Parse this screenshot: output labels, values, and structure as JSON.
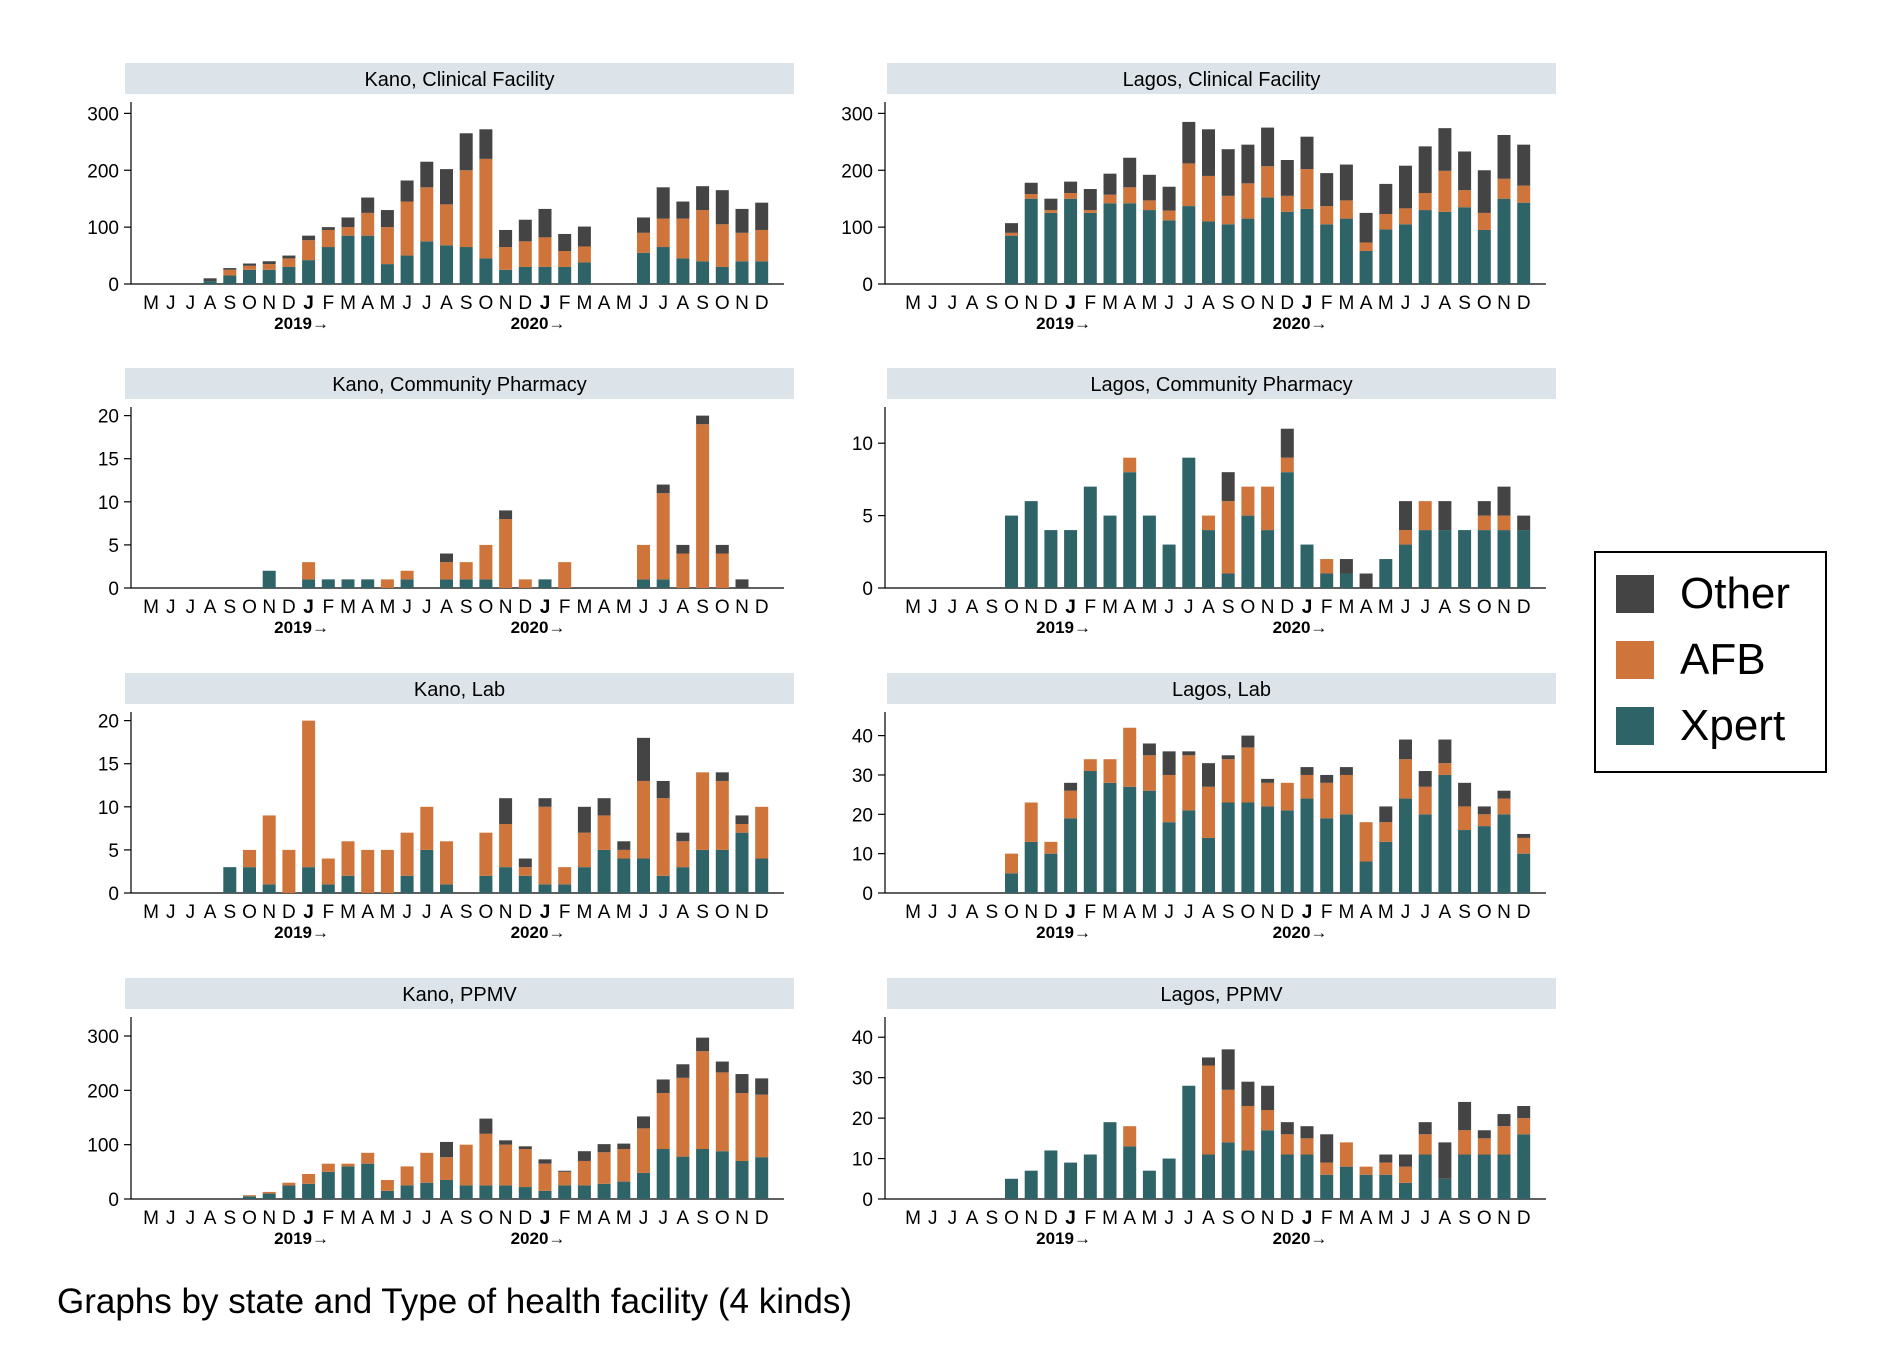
{
  "figure": {
    "caption": "Graphs by state and Type of health facility (4 kinds)"
  },
  "colors": {
    "Other": "#454444",
    "AFB": "#cf743a",
    "Xpert": "#2e6468",
    "strip": "#dce4ea",
    "axis": "#000000"
  },
  "legend": {
    "placement": "right",
    "items": [
      "Other",
      "AFB",
      "Xpert"
    ]
  },
  "x_axis": {
    "months": [
      "M",
      "J",
      "J",
      "A",
      "S",
      "O",
      "N",
      "D",
      "J",
      "F",
      "M",
      "A",
      "M",
      "J",
      "J",
      "A",
      "S",
      "O",
      "N",
      "D",
      "J",
      "F",
      "M",
      "A",
      "M",
      "J",
      "J",
      "A",
      "S",
      "O",
      "N",
      "D"
    ],
    "bold_indices": [
      8,
      20
    ],
    "year_labels": [
      {
        "text": "2019→",
        "month_index": 8
      },
      {
        "text": "2020→",
        "month_index": 20
      }
    ]
  },
  "chart_data": [
    {
      "type": "bar",
      "stacked": true,
      "title": "Kano, Clinical Facility",
      "ylim": [
        0,
        320
      ],
      "yticks": [
        0,
        100,
        200,
        300
      ],
      "series": [
        {
          "name": "Xpert",
          "values": [
            0,
            0,
            0,
            5,
            15,
            25,
            25,
            30,
            42,
            65,
            85,
            85,
            35,
            50,
            75,
            68,
            65,
            45,
            25,
            30,
            30,
            30,
            38,
            0,
            0,
            55,
            65,
            45,
            40,
            30,
            40,
            40
          ]
        },
        {
          "name": "AFB",
          "values": [
            0,
            0,
            0,
            0,
            10,
            7,
            10,
            15,
            35,
            30,
            15,
            40,
            65,
            95,
            95,
            72,
            135,
            175,
            40,
            45,
            52,
            28,
            28,
            0,
            0,
            35,
            50,
            70,
            90,
            75,
            50,
            55
          ]
        },
        {
          "name": "Other",
          "values": [
            0,
            0,
            0,
            5,
            3,
            4,
            5,
            5,
            8,
            5,
            17,
            27,
            30,
            37,
            45,
            62,
            65,
            52,
            30,
            38,
            50,
            30,
            35,
            0,
            0,
            27,
            55,
            30,
            42,
            60,
            42,
            48
          ]
        }
      ]
    },
    {
      "type": "bar",
      "stacked": true,
      "title": "Lagos, Clinical Facility",
      "ylim": [
        0,
        320
      ],
      "yticks": [
        0,
        100,
        200,
        300
      ],
      "series": [
        {
          "name": "Xpert",
          "values": [
            0,
            0,
            0,
            0,
            0,
            85,
            150,
            125,
            150,
            125,
            142,
            142,
            130,
            112,
            137,
            110,
            105,
            115,
            152,
            127,
            132,
            105,
            115,
            58,
            96,
            105,
            130,
            127,
            135,
            95,
            150,
            143
          ]
        },
        {
          "name": "AFB",
          "values": [
            0,
            0,
            0,
            0,
            0,
            5,
            8,
            5,
            10,
            5,
            15,
            28,
            17,
            17,
            75,
            80,
            50,
            62,
            55,
            28,
            70,
            32,
            32,
            15,
            27,
            28,
            30,
            72,
            30,
            30,
            35,
            30
          ]
        },
        {
          "name": "Other",
          "values": [
            0,
            0,
            0,
            0,
            0,
            17,
            20,
            20,
            20,
            37,
            37,
            52,
            45,
            42,
            73,
            82,
            82,
            68,
            68,
            63,
            57,
            58,
            63,
            52,
            53,
            75,
            82,
            75,
            68,
            75,
            77,
            72
          ]
        }
      ]
    },
    {
      "type": "bar",
      "stacked": true,
      "title": "Kano, Community Pharmacy",
      "ylim": [
        0,
        21
      ],
      "yticks": [
        0,
        5,
        10,
        15,
        20
      ],
      "series": [
        {
          "name": "Xpert",
          "values": [
            0,
            0,
            0,
            0,
            0,
            0,
            2,
            0,
            1,
            1,
            1,
            1,
            0,
            1,
            0,
            1,
            1,
            1,
            0,
            0,
            1,
            0,
            0,
            0,
            0,
            1,
            1,
            0,
            0,
            0,
            0,
            0
          ]
        },
        {
          "name": "AFB",
          "values": [
            0,
            0,
            0,
            0,
            0,
            0,
            0,
            0,
            2,
            0,
            0,
            0,
            1,
            1,
            0,
            2,
            2,
            4,
            8,
            1,
            0,
            3,
            0,
            0,
            0,
            4,
            10,
            4,
            19,
            4,
            0,
            0
          ]
        },
        {
          "name": "Other",
          "values": [
            0,
            0,
            0,
            0,
            0,
            0,
            0,
            0,
            0,
            0,
            0,
            0,
            0,
            0,
            0,
            1,
            0,
            0,
            1,
            0,
            0,
            0,
            0,
            0,
            0,
            0,
            1,
            1,
            1,
            1,
            1,
            0
          ]
        }
      ]
    },
    {
      "type": "bar",
      "stacked": true,
      "title": "Lagos, Community Pharmacy",
      "ylim": [
        0,
        12.5
      ],
      "yticks": [
        0,
        5,
        10
      ],
      "series": [
        {
          "name": "Xpert",
          "values": [
            0,
            0,
            0,
            0,
            0,
            5,
            6,
            4,
            4,
            7,
            5,
            8,
            5,
            3,
            9,
            4,
            1,
            5,
            4,
            8,
            3,
            1,
            1,
            0,
            2,
            3,
            4,
            4,
            4,
            4,
            4,
            4
          ]
        },
        {
          "name": "AFB",
          "values": [
            0,
            0,
            0,
            0,
            0,
            0,
            0,
            0,
            0,
            0,
            0,
            1,
            0,
            0,
            0,
            1,
            5,
            2,
            3,
            1,
            0,
            1,
            0,
            0,
            0,
            1,
            2,
            0,
            0,
            1,
            1,
            0
          ]
        },
        {
          "name": "Other",
          "values": [
            0,
            0,
            0,
            0,
            0,
            0,
            0,
            0,
            0,
            0,
            0,
            0,
            0,
            0,
            0,
            0,
            2,
            0,
            0,
            2,
            0,
            0,
            1,
            1,
            0,
            2,
            0,
            2,
            0,
            1,
            2,
            1
          ]
        }
      ]
    },
    {
      "type": "bar",
      "stacked": true,
      "title": "Kano, Lab",
      "ylim": [
        0,
        21
      ],
      "yticks": [
        0,
        5,
        10,
        15,
        20
      ],
      "series": [
        {
          "name": "Xpert",
          "values": [
            0,
            0,
            0,
            0,
            3,
            3,
            1,
            0,
            3,
            1,
            2,
            0,
            0,
            2,
            5,
            1,
            0,
            2,
            3,
            2,
            1,
            1,
            3,
            5,
            4,
            4,
            2,
            3,
            5,
            5,
            7,
            4
          ]
        },
        {
          "name": "AFB",
          "values": [
            0,
            0,
            0,
            0,
            0,
            2,
            8,
            5,
            17,
            3,
            4,
            5,
            5,
            5,
            5,
            5,
            0,
            5,
            5,
            1,
            9,
            2,
            4,
            4,
            1,
            9,
            9,
            3,
            9,
            8,
            1,
            6
          ]
        },
        {
          "name": "Other",
          "values": [
            0,
            0,
            0,
            0,
            0,
            0,
            0,
            0,
            0,
            0,
            0,
            0,
            0,
            0,
            0,
            0,
            0,
            0,
            3,
            1,
            1,
            0,
            3,
            2,
            1,
            5,
            2,
            1,
            0,
            1,
            1,
            0
          ]
        }
      ]
    },
    {
      "type": "bar",
      "stacked": true,
      "title": "Lagos, Lab",
      "ylim": [
        0,
        46
      ],
      "yticks": [
        0,
        10,
        20,
        30,
        40
      ],
      "series": [
        {
          "name": "Xpert",
          "values": [
            0,
            0,
            0,
            0,
            0,
            5,
            13,
            10,
            19,
            31,
            28,
            27,
            26,
            18,
            21,
            14,
            23,
            23,
            22,
            21,
            24,
            19,
            20,
            8,
            13,
            24,
            20,
            30,
            16,
            17,
            20,
            10
          ]
        },
        {
          "name": "AFB",
          "values": [
            0,
            0,
            0,
            0,
            0,
            5,
            10,
            3,
            7,
            3,
            6,
            15,
            9,
            12,
            14,
            13,
            11,
            14,
            6,
            7,
            6,
            9,
            10,
            10,
            5,
            10,
            7,
            3,
            6,
            3,
            4,
            4
          ]
        },
        {
          "name": "Other",
          "values": [
            0,
            0,
            0,
            0,
            0,
            0,
            0,
            0,
            2,
            0,
            0,
            0,
            3,
            6,
            1,
            6,
            1,
            3,
            1,
            0,
            2,
            2,
            2,
            0,
            4,
            5,
            4,
            6,
            6,
            2,
            2,
            1
          ]
        }
      ]
    },
    {
      "type": "bar",
      "stacked": true,
      "title": "Kano, PPMV",
      "ylim": [
        0,
        335
      ],
      "yticks": [
        0,
        100,
        200,
        300
      ],
      "series": [
        {
          "name": "Xpert",
          "values": [
            0,
            0,
            0,
            0,
            0,
            5,
            10,
            25,
            28,
            50,
            60,
            65,
            15,
            25,
            30,
            35,
            25,
            25,
            25,
            22,
            15,
            25,
            25,
            28,
            32,
            48,
            92,
            78,
            92,
            88,
            70,
            77
          ]
        },
        {
          "name": "AFB",
          "values": [
            0,
            0,
            0,
            0,
            0,
            2,
            3,
            5,
            18,
            15,
            5,
            20,
            20,
            35,
            55,
            42,
            75,
            95,
            75,
            70,
            50,
            25,
            45,
            58,
            60,
            82,
            103,
            145,
            180,
            145,
            125,
            115
          ]
        },
        {
          "name": "Other",
          "values": [
            0,
            0,
            0,
            0,
            0,
            0,
            0,
            0,
            0,
            0,
            0,
            0,
            0,
            0,
            0,
            28,
            0,
            28,
            8,
            5,
            8,
            2,
            18,
            15,
            10,
            22,
            25,
            25,
            25,
            20,
            35,
            30
          ]
        }
      ]
    },
    {
      "type": "bar",
      "stacked": true,
      "title": "Lagos, PPMV",
      "ylim": [
        0,
        45
      ],
      "yticks": [
        0,
        10,
        20,
        30,
        40
      ],
      "series": [
        {
          "name": "Xpert",
          "values": [
            0,
            0,
            0,
            0,
            0,
            5,
            7,
            12,
            9,
            11,
            19,
            13,
            7,
            10,
            28,
            11,
            14,
            12,
            17,
            11,
            11,
            6,
            8,
            6,
            6,
            4,
            11,
            5,
            11,
            11,
            11,
            16
          ]
        },
        {
          "name": "AFB",
          "values": [
            0,
            0,
            0,
            0,
            0,
            0,
            0,
            0,
            0,
            0,
            0,
            5,
            0,
            0,
            0,
            22,
            13,
            11,
            5,
            5,
            4,
            3,
            6,
            2,
            3,
            4,
            5,
            0,
            6,
            4,
            7,
            4
          ]
        },
        {
          "name": "Other",
          "values": [
            0,
            0,
            0,
            0,
            0,
            0,
            0,
            0,
            0,
            0,
            0,
            0,
            0,
            0,
            0,
            2,
            10,
            6,
            6,
            3,
            3,
            7,
            0,
            0,
            2,
            3,
            3,
            9,
            7,
            2,
            3,
            3
          ]
        }
      ]
    }
  ]
}
